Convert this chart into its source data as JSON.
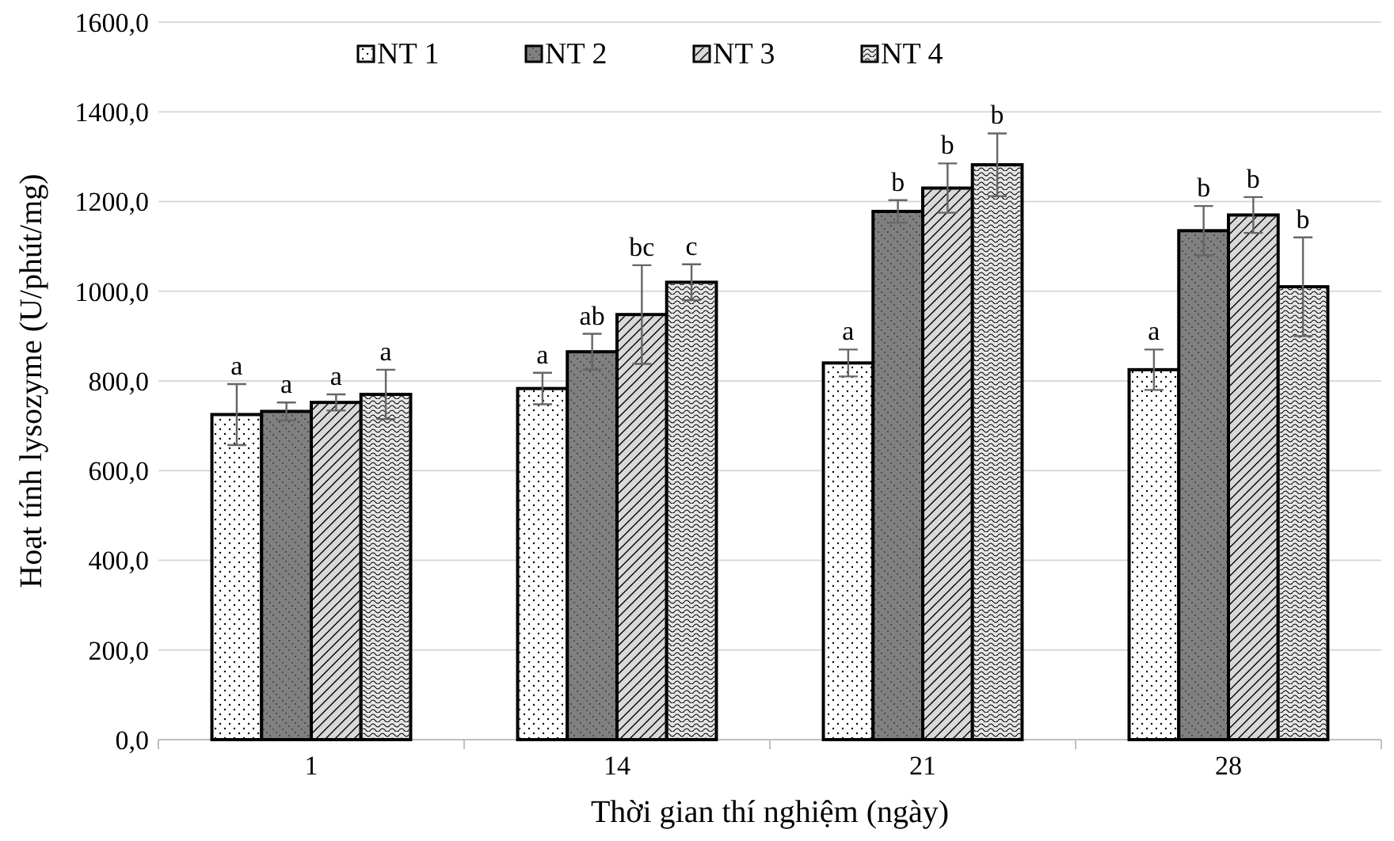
{
  "chart_data": {
    "type": "bar",
    "xlabel": "Thời gian thí nghiệm (ngày)",
    "ylabel": "Hoạt tính lysozyme (U/phút/mg)",
    "categories": [
      "1",
      "14",
      "21",
      "28"
    ],
    "series": [
      {
        "name": "NT 1",
        "color": "#ffffff",
        "values": [
          725,
          783,
          840,
          825
        ],
        "errors": [
          68,
          35,
          30,
          45
        ],
        "value_labels": [
          "a",
          "a",
          "a",
          "a"
        ]
      },
      {
        "name": "NT 2",
        "color": "#808080",
        "values": [
          732,
          865,
          1178,
          1135
        ],
        "errors": [
          20,
          40,
          25,
          55
        ],
        "value_labels": [
          "a",
          "ab",
          "b",
          "b"
        ]
      },
      {
        "name": "NT 3",
        "color": "#d9d9d9",
        "values": [
          752,
          948,
          1230,
          1170
        ],
        "errors": [
          18,
          110,
          55,
          40
        ],
        "value_labels": [
          "a",
          "bc",
          "b",
          "b"
        ]
      },
      {
        "name": "NT 4",
        "color": "#e6e6e6",
        "values": [
          770,
          1020,
          1282,
          1010
        ],
        "errors": [
          55,
          40,
          70,
          110
        ],
        "value_labels": [
          "a",
          "c",
          "b",
          "b"
        ]
      }
    ],
    "ylim": [
      0,
      1600
    ],
    "yticks": [
      {
        "value": 0,
        "label": "0,0"
      },
      {
        "value": 200,
        "label": "200,0"
      },
      {
        "value": 400,
        "label": "400,0"
      },
      {
        "value": 600,
        "label": "600,0"
      },
      {
        "value": 800,
        "label": "800,0"
      },
      {
        "value": 1000,
        "label": "1000,0"
      },
      {
        "value": 1200,
        "label": "1200,0"
      },
      {
        "value": 1400,
        "label": "1400,0"
      },
      {
        "value": 1600,
        "label": "1600,0"
      }
    ],
    "grid": "y",
    "legend": "top"
  }
}
